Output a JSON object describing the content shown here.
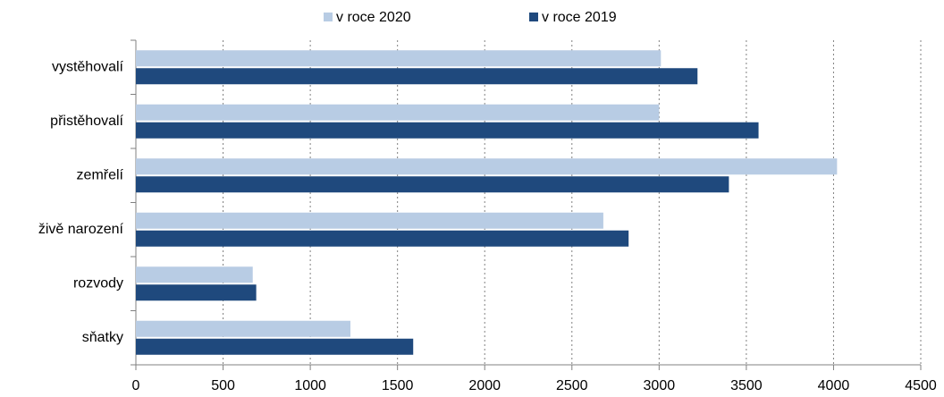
{
  "chart_data": {
    "type": "bar",
    "orientation": "horizontal",
    "categories": [
      "vystěhovalí",
      "přistěhovalí",
      "zemřelí",
      "živě narození",
      "rozvody",
      "sňatky"
    ],
    "series": [
      {
        "name": "v roce 2020",
        "color": "#b8cce4",
        "values": [
          3010,
          3000,
          4020,
          2680,
          670,
          1230
        ]
      },
      {
        "name": "v roce 2019",
        "color": "#1f497d",
        "values": [
          3220,
          3570,
          3400,
          2825,
          690,
          1590
        ]
      }
    ],
    "xlim": [
      0,
      4500
    ],
    "xticks": [
      0,
      500,
      1000,
      1500,
      2000,
      2500,
      3000,
      3500,
      4000,
      4500
    ],
    "grid": true,
    "legend": "top"
  }
}
